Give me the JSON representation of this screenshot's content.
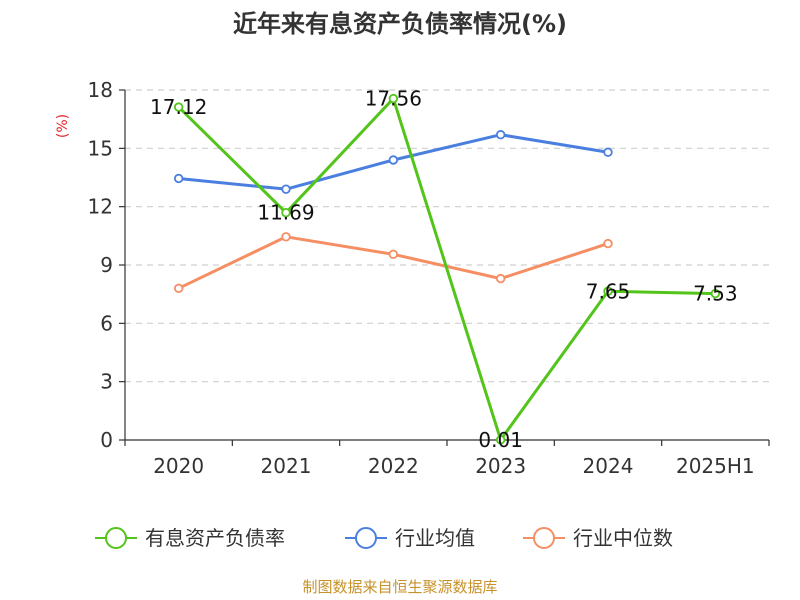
{
  "chart_data": {
    "type": "line",
    "title": "近年来有息资产负债率情况(%)",
    "ylabel": "(%)",
    "categories": [
      "2020",
      "2021",
      "2022",
      "2023",
      "2024",
      "2025H1"
    ],
    "ylim": [
      0,
      18
    ],
    "yticks": [
      0,
      3,
      6,
      9,
      12,
      15,
      18
    ],
    "grid": true,
    "legend_position": "bottom",
    "series": [
      {
        "name": "有息资产负债率",
        "color": "#52c41a",
        "values": [
          17.12,
          11.69,
          17.56,
          0.01,
          7.65,
          7.53
        ],
        "labels": [
          "17.12",
          "11.69",
          "17.56",
          "0.01",
          "7.65",
          "7.53"
        ]
      },
      {
        "name": "行业均值",
        "color": "#4a7fe0",
        "values": [
          13.45,
          12.9,
          14.4,
          15.7,
          14.8,
          null
        ]
      },
      {
        "name": "行业中位数",
        "color": "#f58e63",
        "values": [
          7.8,
          10.45,
          9.55,
          8.3,
          10.1,
          null
        ]
      }
    ]
  },
  "ylabel_color": "#e0282e",
  "source_text": "制图数据来自恒生聚源数据库",
  "source_color": "#c8922a"
}
